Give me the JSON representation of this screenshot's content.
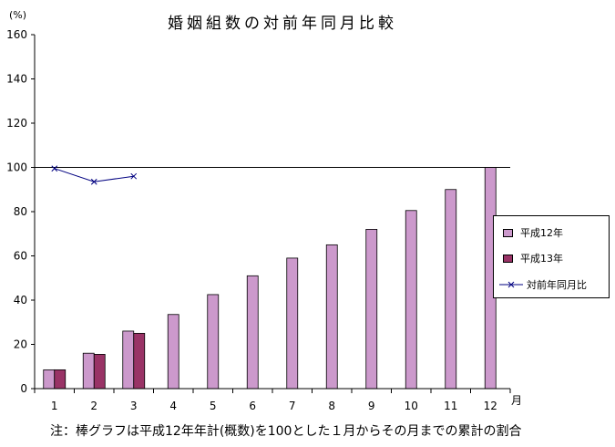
{
  "title": "婚姻組数の対前年同月比較",
  "unit_label": "(%)",
  "note": "注：棒グラフは平成12年年計(概数)を100とした１月からその月までの累計の割合",
  "colors": {
    "h12": "#cc99cc",
    "h13": "#993366",
    "ratio": "#000080",
    "axis": "#000000"
  },
  "chart_data": {
    "type": "bar",
    "categories": [
      "1",
      "2",
      "3",
      "4",
      "5",
      "6",
      "7",
      "8",
      "9",
      "10",
      "11",
      "12"
    ],
    "x_unit": "月",
    "ylim": [
      0,
      160
    ],
    "yticks": [
      "0",
      "20",
      "40",
      "60",
      "80",
      "100",
      "120",
      "140",
      "160"
    ],
    "reference_line": 100,
    "grid": false,
    "legend_position": "right",
    "series": [
      {
        "name": "平成12年",
        "kind": "bar",
        "values": [
          8.5,
          16,
          26,
          33.5,
          42.5,
          51,
          59,
          65,
          72,
          80.5,
          90,
          100
        ]
      },
      {
        "name": "平成13年",
        "kind": "bar",
        "values": [
          8.5,
          15.5,
          25,
          null,
          null,
          null,
          null,
          null,
          null,
          null,
          null,
          null
        ]
      },
      {
        "name": "対前年同月比",
        "kind": "line",
        "values": [
          99.5,
          93.5,
          96,
          null,
          null,
          null,
          null,
          null,
          null,
          null,
          null,
          null
        ]
      }
    ]
  }
}
